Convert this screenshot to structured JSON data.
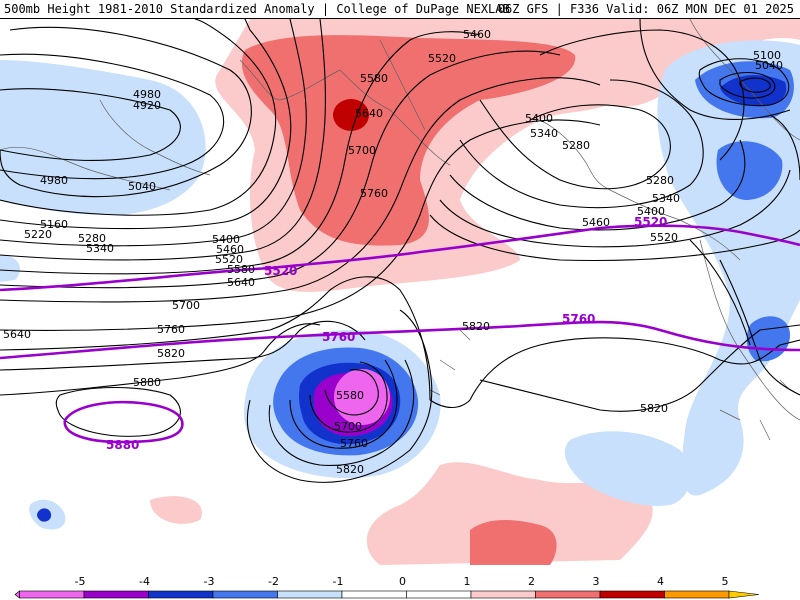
{
  "header": {
    "left": "500mb Height 1981-2010 Standardized Anomaly | College of DuPage NEXLAB",
    "right": "06Z GFS | F336 Valid: 06Z MON DEC 01 2025"
  },
  "colors": {
    "anom_m5": "#ee66ee",
    "anom_m4": "#9900cc",
    "anom_m3": "#1133cc",
    "anom_m2": "#4477ee",
    "anom_m1": "#c8e0fb",
    "anom_p1": "#fbcaca",
    "anom_p2": "#f07070",
    "anom_p3": "#c00000",
    "highlight_contour": "#9900cc"
  },
  "contour_labels": {
    "c4920": "4920",
    "c4980": "4980",
    "c4980b": "4980",
    "c5040": "5040",
    "c5100": "5100",
    "c5040ne": "5040",
    "c5160": "5160",
    "c5220": "5220",
    "c5280w": "5280",
    "c5340w": "5340",
    "c5400": "5400",
    "c5460": "5460",
    "c5520": "5520",
    "c5580": "5580",
    "c5640w": "5640",
    "c5640": "5640",
    "c5700w": "5700",
    "c5760w": "5760",
    "c5820w": "5820",
    "c5880w": "5880",
    "c5460n": "5460",
    "c5520n": "5520",
    "c5580n": "5580",
    "c5640n": "5640",
    "c5700n": "5700",
    "c5760n": "5760",
    "c5400e": "5400",
    "c5340e": "5340",
    "c5280e": "5280",
    "c5280e2": "5280",
    "c5340e2": "5340",
    "c5400e2": "5400",
    "c5460e2": "5460",
    "c5520e2": "5520",
    "c5820c": "5820",
    "c5820se": "5820",
    "c5580low": "5580",
    "c5700low": "5700",
    "c5760low": "5760",
    "c5820low": "5820",
    "h5520w": "5520",
    "h5520e": "5520",
    "h5760c": "5760",
    "h5760e": "5760",
    "h5880": "5880"
  },
  "colorbar": {
    "ticks": [
      "-5",
      "-4",
      "-3",
      "-2",
      "-1",
      "0",
      "1",
      "2",
      "3",
      "4",
      "5"
    ],
    "segments": [
      "#ee66ee",
      "#9900cc",
      "#1133cc",
      "#4477ee",
      "#c8e0fb",
      "#ffffff",
      "#ffffff",
      "#fbcaca",
      "#f07070",
      "#c00000",
      "#ff9900"
    ]
  }
}
